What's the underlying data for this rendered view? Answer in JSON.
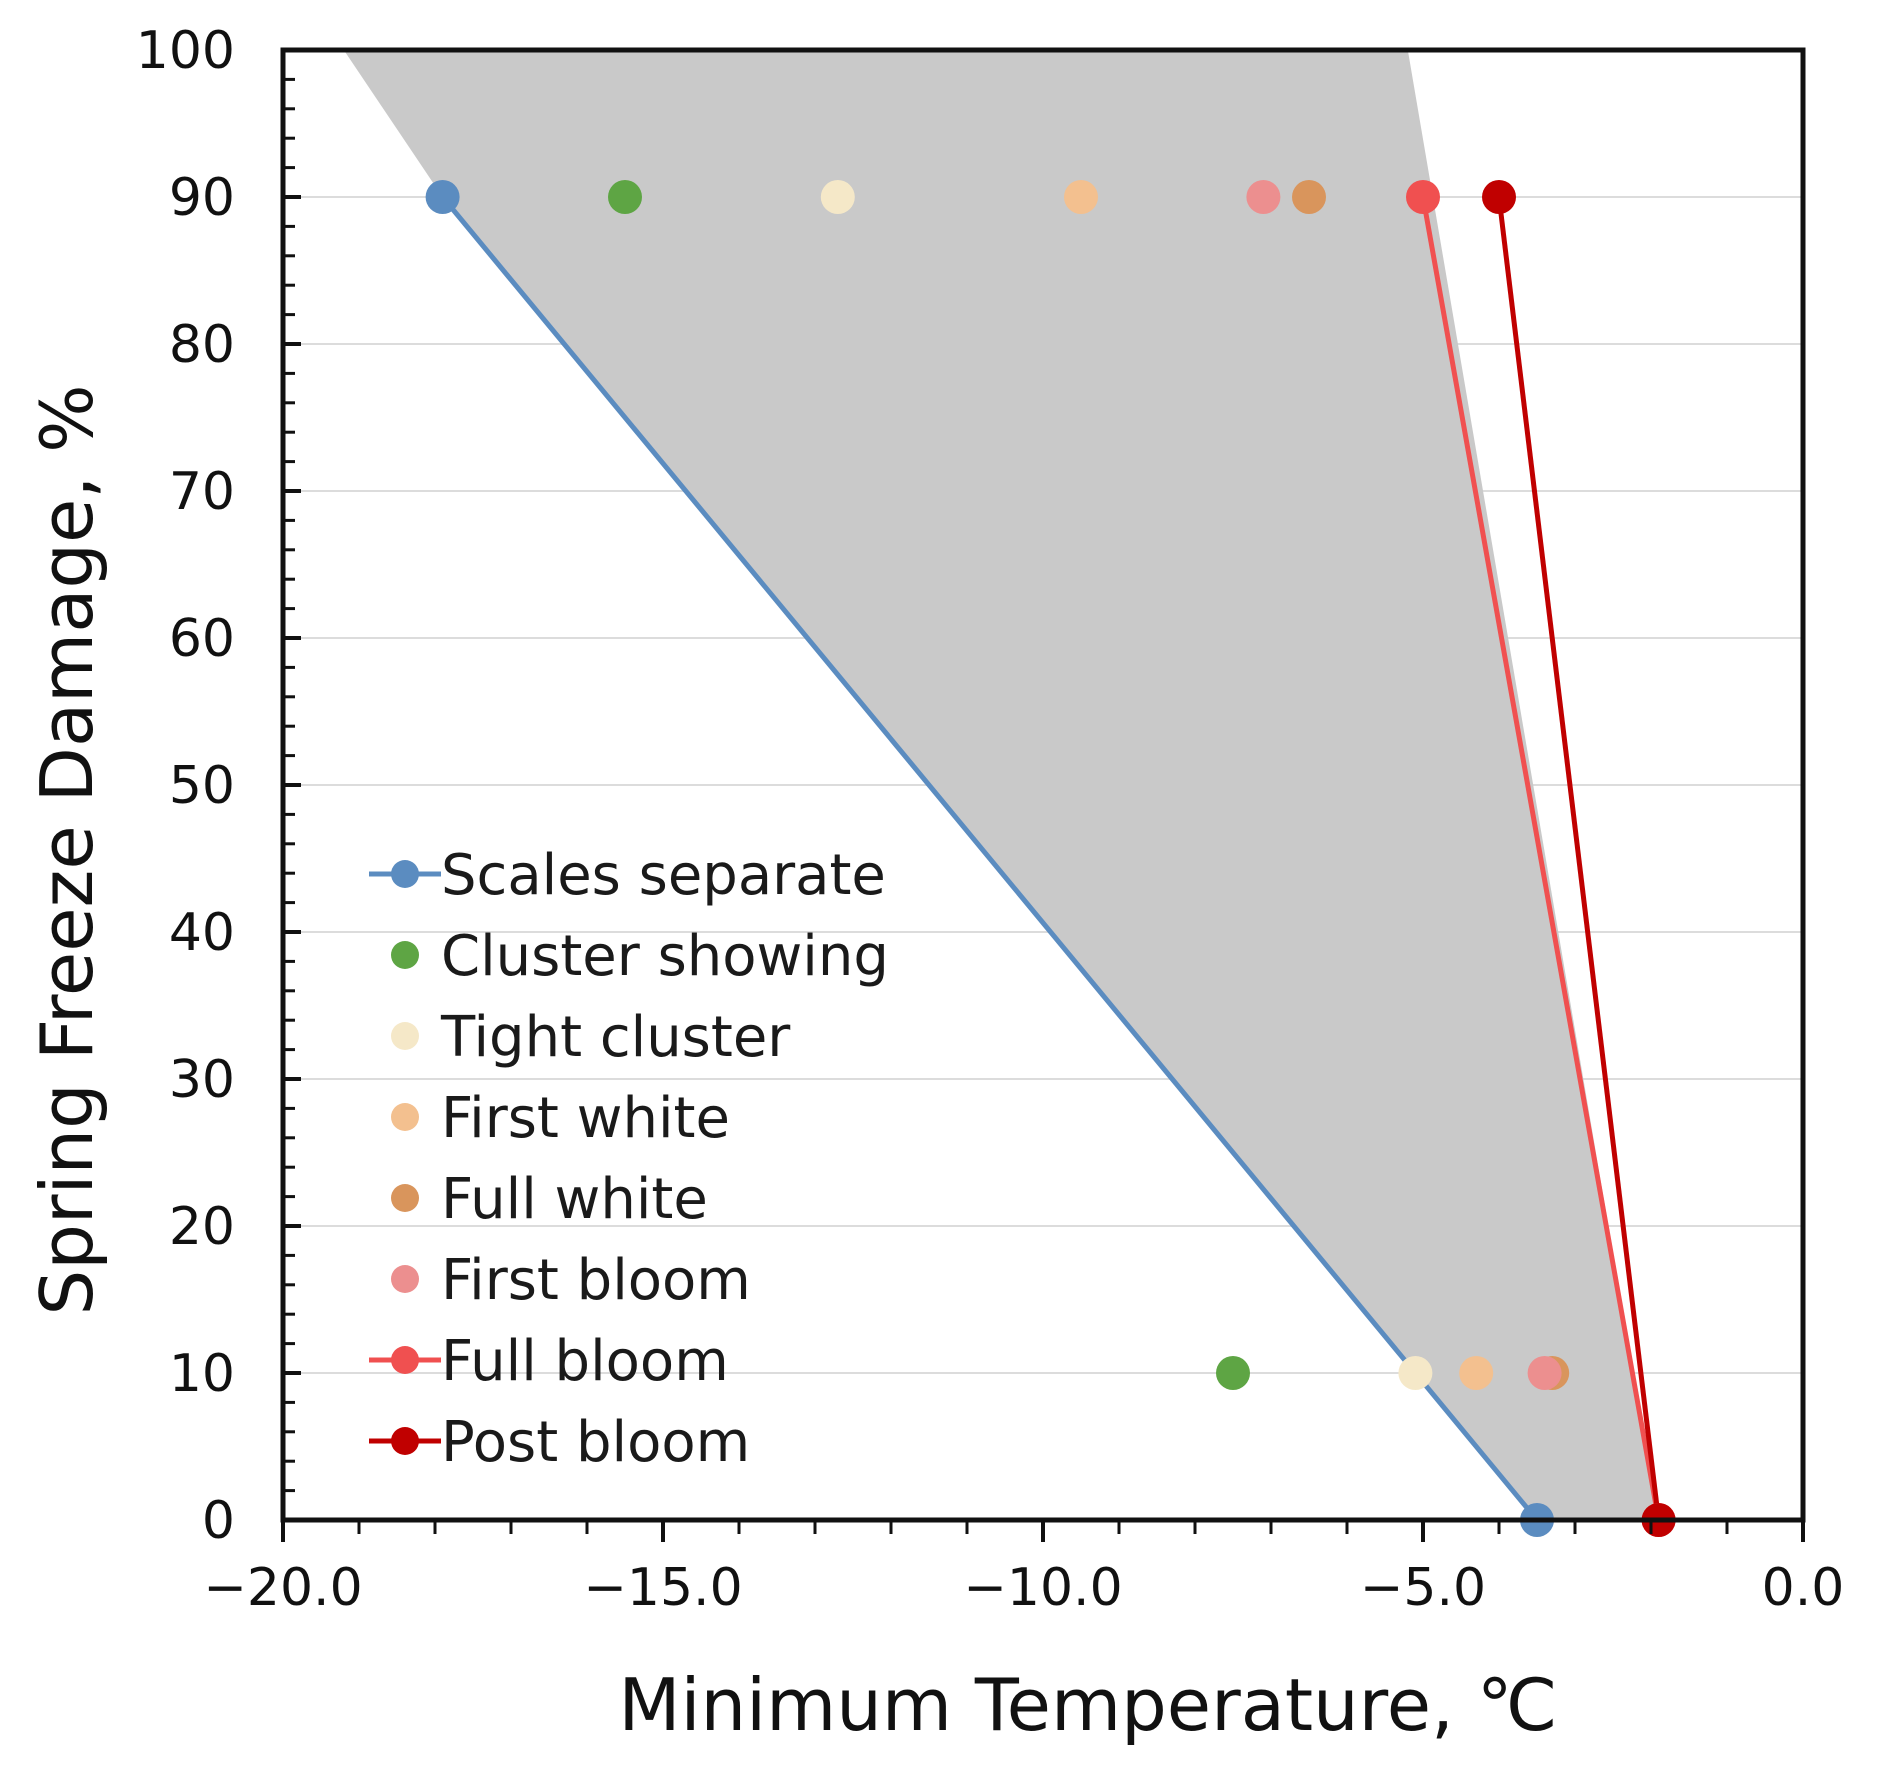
{
  "chart_data": {
    "type": "line",
    "xlabel": "Minimum Temperature, ℃",
    "ylabel": "Spring Freeze Damage, %",
    "xlim": [
      -20.0,
      0.0
    ],
    "ylim": [
      0,
      100
    ],
    "x_ticks": [
      "−20.0",
      "−15.0",
      "−10.0",
      "−5.0",
      "0.0"
    ],
    "x_tick_values": [
      -20,
      -15,
      -10,
      -5,
      0
    ],
    "y_ticks": [
      "0",
      "10",
      "20",
      "30",
      "40",
      "50",
      "60",
      "70",
      "80",
      "90",
      "100"
    ],
    "y_tick_values": [
      0,
      10,
      20,
      30,
      40,
      50,
      60,
      70,
      80,
      90,
      100
    ],
    "grid": "horizontal",
    "legend_position": "bottom-left",
    "shaded_region": {
      "color": "#c9c9c9",
      "points": [
        [
          -19.2,
          100
        ],
        [
          -5.2,
          100
        ],
        [
          -1.9,
          0
        ],
        [
          -3.5,
          0
        ],
        [
          -17.9,
          90
        ]
      ]
    },
    "series": [
      {
        "name": "Scales separate",
        "color": "#5b8cc0",
        "line": true,
        "x": [
          -17.9,
          -3.5
        ],
        "y": [
          90,
          0
        ]
      },
      {
        "name": "Cluster showing",
        "color": "#5ea544",
        "line": false,
        "x": [
          -15.5,
          -7.5
        ],
        "y": [
          90,
          10
        ]
      },
      {
        "name": "Tight cluster",
        "color": "#f5e8c8",
        "line": false,
        "x": [
          -12.7,
          -5.1
        ],
        "y": [
          90,
          10
        ]
      },
      {
        "name": "First white",
        "color": "#f3c08f",
        "line": false,
        "x": [
          -9.5,
          -4.3
        ],
        "y": [
          90,
          10
        ]
      },
      {
        "name": "Full white",
        "color": "#d9955c",
        "line": false,
        "x": [
          -6.5,
          -3.3
        ],
        "y": [
          90,
          10
        ]
      },
      {
        "name": "First bloom",
        "color": "#ec8f8f",
        "line": false,
        "x": [
          -7.1,
          -3.4
        ],
        "y": [
          90,
          10
        ]
      },
      {
        "name": "Full bloom",
        "color": "#f05050",
        "line": true,
        "x": [
          -5.0,
          -1.9
        ],
        "y": [
          90,
          0
        ]
      },
      {
        "name": "Post bloom",
        "color": "#c00000",
        "line": true,
        "x": [
          -4.0,
          -1.9
        ],
        "y": [
          90,
          0
        ]
      }
    ]
  }
}
